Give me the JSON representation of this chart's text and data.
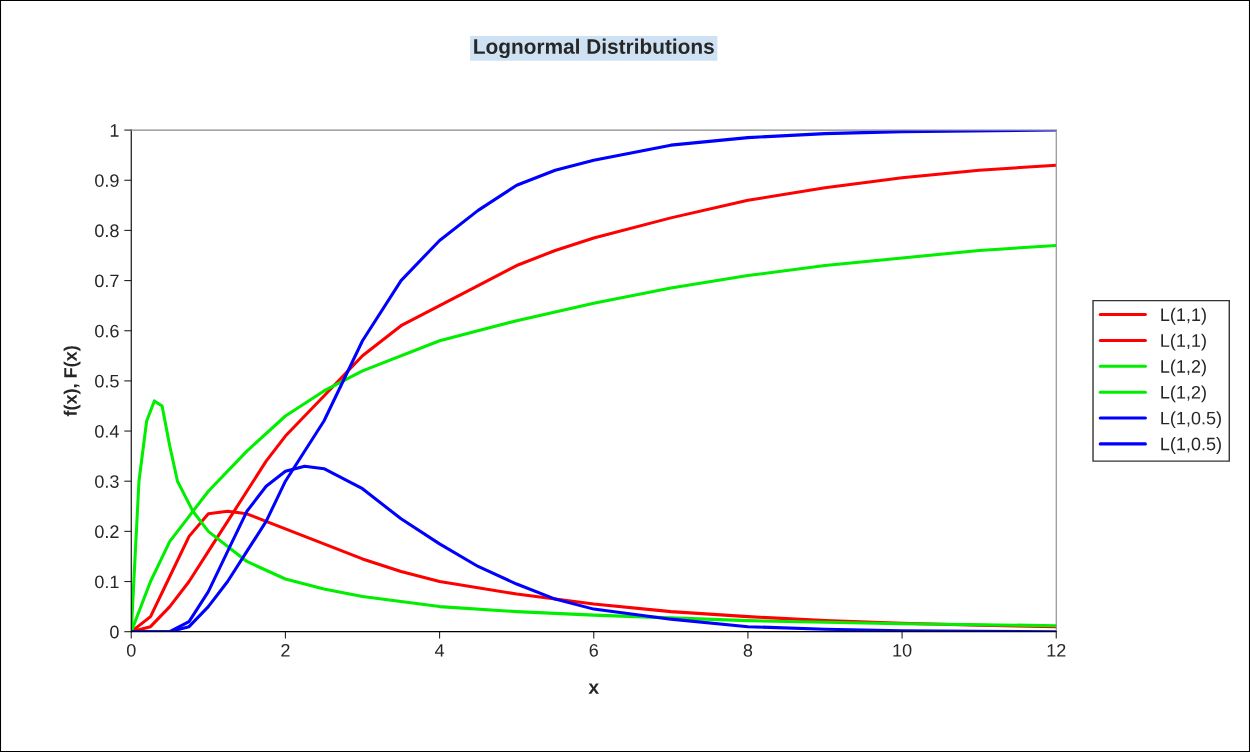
{
  "chart_data": {
    "type": "line",
    "title": "Lognormal Distributions",
    "xlabel": "x",
    "ylabel": "f(x), F(x)",
    "xlim": [
      0,
      12
    ],
    "xticks": [
      0,
      2,
      4,
      6,
      8,
      10,
      12
    ],
    "ylim": [
      0,
      1
    ],
    "yticks": [
      0,
      0.1,
      0.2,
      0.3,
      0.4,
      0.5,
      0.6,
      0.7,
      0.8,
      0.9,
      1
    ],
    "grid": false,
    "legend": "right",
    "marker": "none",
    "line_style": "solid",
    "series": [
      {
        "name": "L(1,1)",
        "color": "#ff0000",
        "x": [
          0,
          0.25,
          0.5,
          0.75,
          1,
          1.25,
          1.5,
          2,
          2.5,
          3,
          3.5,
          4,
          5,
          6,
          7,
          8,
          9,
          10,
          11,
          12
        ],
        "values": [
          0,
          0.03,
          0.11,
          0.19,
          0.235,
          0.24,
          0.235,
          0.205,
          0.175,
          0.145,
          0.12,
          0.1,
          0.075,
          0.055,
          0.04,
          0.03,
          0.022,
          0.017,
          0.013,
          0.01
        ]
      },
      {
        "name": "L(1,1)",
        "color": "#ff0000",
        "x": [
          0,
          0.25,
          0.5,
          0.75,
          1,
          1.25,
          1.5,
          1.75,
          2,
          2.5,
          3,
          3.5,
          4,
          4.5,
          5,
          5.5,
          6,
          7,
          8,
          9,
          10,
          11,
          12
        ],
        "values": [
          0,
          0.01,
          0.05,
          0.1,
          0.16,
          0.22,
          0.28,
          0.34,
          0.39,
          0.47,
          0.55,
          0.61,
          0.65,
          0.69,
          0.73,
          0.76,
          0.785,
          0.825,
          0.86,
          0.885,
          0.905,
          0.92,
          0.93
        ]
      },
      {
        "name": "L(1,2)",
        "color": "#00ee00",
        "x": [
          0,
          0.1,
          0.2,
          0.3,
          0.4,
          0.5,
          0.6,
          0.8,
          1,
          1.5,
          2,
          2.5,
          3,
          4,
          5,
          6,
          8,
          10,
          12
        ],
        "values": [
          0,
          0.3,
          0.42,
          0.46,
          0.45,
          0.37,
          0.3,
          0.24,
          0.2,
          0.14,
          0.105,
          0.085,
          0.07,
          0.05,
          0.04,
          0.033,
          0.022,
          0.016,
          0.012
        ]
      },
      {
        "name": "L(1,2)",
        "color": "#00ee00",
        "x": [
          0,
          0.25,
          0.5,
          0.75,
          1,
          1.5,
          2,
          2.5,
          3,
          4,
          5,
          6,
          7,
          8,
          9,
          10,
          11,
          12
        ],
        "values": [
          0,
          0.1,
          0.18,
          0.23,
          0.28,
          0.36,
          0.43,
          0.48,
          0.52,
          0.58,
          0.62,
          0.655,
          0.685,
          0.71,
          0.73,
          0.745,
          0.76,
          0.77
        ]
      },
      {
        "name": "L(1,0.5)",
        "color": "#0000ff",
        "x": [
          0,
          0.5,
          0.75,
          1,
          1.25,
          1.5,
          1.75,
          2,
          2.25,
          2.5,
          3,
          3.5,
          4,
          4.5,
          5,
          5.5,
          6,
          7,
          8,
          9,
          10,
          12
        ],
        "values": [
          0,
          0,
          0.02,
          0.08,
          0.16,
          0.24,
          0.29,
          0.32,
          0.33,
          0.325,
          0.285,
          0.225,
          0.175,
          0.13,
          0.095,
          0.065,
          0.045,
          0.025,
          0.01,
          0.005,
          0.002,
          0
        ]
      },
      {
        "name": "L(1,0.5)",
        "color": "#0000ff",
        "x": [
          0,
          0.5,
          0.75,
          1,
          1.25,
          1.5,
          1.75,
          2,
          2.5,
          3,
          3.5,
          4,
          4.5,
          5,
          5.5,
          6,
          7,
          8,
          9,
          10,
          12
        ],
        "values": [
          0,
          0,
          0.01,
          0.05,
          0.1,
          0.16,
          0.22,
          0.3,
          0.42,
          0.58,
          0.7,
          0.78,
          0.84,
          0.89,
          0.92,
          0.94,
          0.97,
          0.985,
          0.993,
          0.997,
          1.0
        ]
      }
    ]
  }
}
